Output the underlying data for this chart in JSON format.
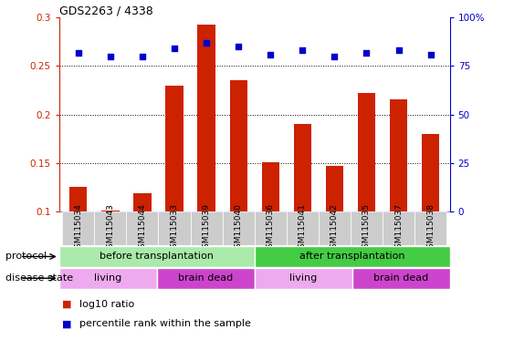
{
  "title": "GDS2263 / 4338",
  "samples": [
    "GSM115034",
    "GSM115043",
    "GSM115044",
    "GSM115033",
    "GSM115039",
    "GSM115040",
    "GSM115036",
    "GSM115041",
    "GSM115042",
    "GSM115035",
    "GSM115037",
    "GSM115038"
  ],
  "log10_ratio": [
    0.126,
    0.101,
    0.119,
    0.23,
    0.293,
    0.235,
    0.151,
    0.19,
    0.147,
    0.222,
    0.216,
    0.18
  ],
  "percentile_rank_pct": [
    82,
    80,
    80,
    84,
    87,
    85,
    81,
    83,
    80,
    82,
    83,
    81
  ],
  "bar_color": "#cc2200",
  "dot_color": "#0000cc",
  "ylim_left": [
    0.1,
    0.3
  ],
  "yticks_left": [
    0.1,
    0.15,
    0.2,
    0.25,
    0.3
  ],
  "ylim_right": [
    0,
    100
  ],
  "yticks_right_vals": [
    0,
    25,
    50,
    75,
    100
  ],
  "yticks_right_labels": [
    "0",
    "25",
    "50",
    "75",
    "100%"
  ],
  "protocol_groups": [
    {
      "label": "before transplantation",
      "start": 0,
      "end": 6,
      "color": "#aaeaaa"
    },
    {
      "label": "after transplantation",
      "start": 6,
      "end": 12,
      "color": "#44cc44"
    }
  ],
  "disease_groups": [
    {
      "label": "living",
      "start": 0,
      "end": 3,
      "color": "#eeaaee"
    },
    {
      "label": "brain dead",
      "start": 3,
      "end": 6,
      "color": "#cc44cc"
    },
    {
      "label": "living",
      "start": 6,
      "end": 9,
      "color": "#eeaaee"
    },
    {
      "label": "brain dead",
      "start": 9,
      "end": 12,
      "color": "#cc44cc"
    }
  ],
  "legend_items": [
    {
      "label": "log10 ratio",
      "color": "#cc2200"
    },
    {
      "label": "percentile rank within the sample",
      "color": "#0000cc"
    }
  ],
  "protocol_label": "protocol",
  "disease_label": "disease state",
  "background_color": "#ffffff"
}
